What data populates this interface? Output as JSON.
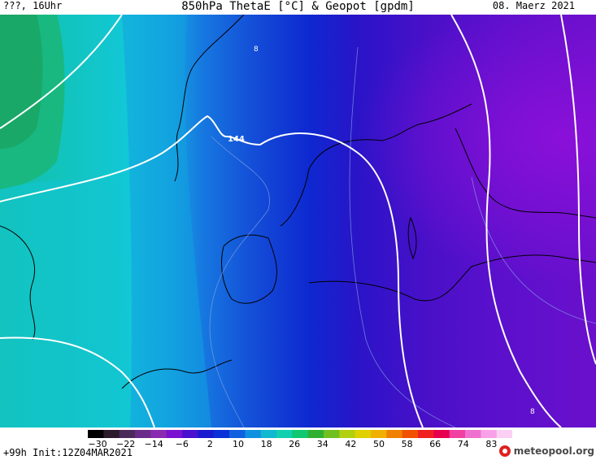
{
  "header": {
    "title": "850hPa ThetaE [°C] & Geopot [gpdm]",
    "left": "???, 16Uhr",
    "right": "08. Maerz 2021"
  },
  "map": {
    "contour_labels": [
      "8",
      "144",
      "8"
    ]
  },
  "colorbar": {
    "ticks": [
      "−30",
      "−22",
      "−14",
      "−6",
      "2",
      "10",
      "18",
      "26",
      "34",
      "42",
      "50",
      "58",
      "66",
      "74",
      "83"
    ],
    "colors": [
      "#000000",
      "#2a1a2a",
      "#4a2a5a",
      "#6a2a8a",
      "#8a2ab0",
      "#7a10d0",
      "#4a10d0",
      "#1a1ad0",
      "#0a30d8",
      "#1060e0",
      "#1090e0",
      "#10b8d0",
      "#10d0b0",
      "#10c870",
      "#30b030",
      "#70c020",
      "#b0d010",
      "#e0d000",
      "#f0b000",
      "#f08000",
      "#f05000",
      "#f02020",
      "#e80050",
      "#f040a0",
      "#f070d0",
      "#f8a0e8",
      "#fcd0f4"
    ]
  },
  "footer": {
    "init": "+99h Init:12Z04MAR2021",
    "logo": "meteopool.org"
  }
}
